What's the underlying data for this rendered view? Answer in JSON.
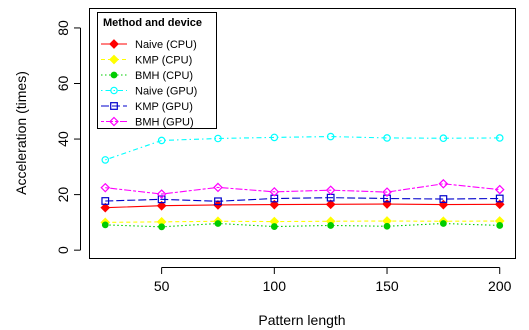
{
  "chart_data": {
    "type": "line",
    "xlabel": "Pattern length",
    "ylabel": "Acceleration (times)",
    "x": [
      25,
      50,
      75,
      100,
      125,
      150,
      175,
      200
    ],
    "xlim": [
      18,
      207
    ],
    "ylim": [
      -3,
      87
    ],
    "xticks": [
      50,
      100,
      150,
      200
    ],
    "yticks": [
      0,
      20,
      40,
      60,
      80
    ],
    "grid": false,
    "legend": {
      "title": "Method and device",
      "position": "top-left"
    },
    "series": [
      {
        "name": "Naive (CPU)",
        "color": "#ff0000",
        "dash": "solid",
        "marker": "diamond-filled",
        "values": [
          15.3,
          16.0,
          16.3,
          16.4,
          16.5,
          16.6,
          16.4,
          16.5
        ]
      },
      {
        "name": "KMP (CPU)",
        "color": "#ffff00",
        "dash": "dashed",
        "marker": "diamond-filled",
        "values": [
          10.0,
          10.2,
          10.4,
          10.3,
          10.4,
          10.5,
          10.4,
          10.5
        ]
      },
      {
        "name": "BMH (CPU)",
        "color": "#00cc00",
        "dash": "dotted",
        "marker": "circle-filled",
        "values": [
          9.1,
          8.4,
          9.6,
          8.5,
          8.9,
          8.6,
          9.6,
          8.9
        ]
      },
      {
        "name": "Naive (GPU)",
        "color": "#00ffff",
        "dash": "dashdot",
        "marker": "circle-open",
        "values": [
          32.5,
          39.5,
          40.2,
          40.6,
          40.9,
          40.4,
          40.3,
          40.4
        ]
      },
      {
        "name": "KMP (GPU)",
        "color": "#0000cc",
        "dash": "longdash",
        "marker": "square-open",
        "values": [
          17.7,
          18.3,
          17.6,
          18.6,
          18.9,
          18.6,
          18.4,
          18.6
        ]
      },
      {
        "name": "BMH (GPU)",
        "color": "#ff00ff",
        "dash": "twodash",
        "marker": "diamond-open",
        "values": [
          22.5,
          20.2,
          22.6,
          21.0,
          21.6,
          20.9,
          23.9,
          21.8
        ]
      }
    ]
  }
}
